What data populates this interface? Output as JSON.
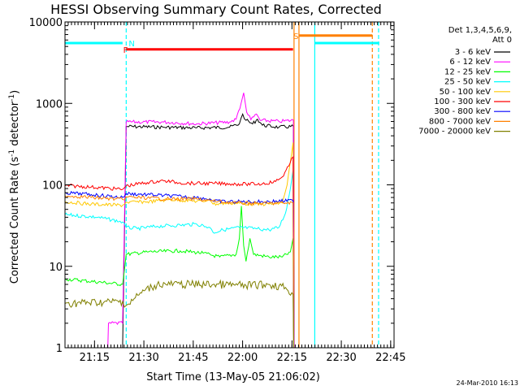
{
  "chart_data": {
    "type": "line",
    "title": "HESSI Observing Summary Count Rates, Corrected",
    "xlabel": "Start Time (13-May-05 21:06:02)",
    "ylabel_main": "Corrected Count Rate (s",
    "ylabel_sup1": "-1",
    "ylabel_mid": " detector",
    "ylabel_sup2": "-1",
    "ylabel_end": ")",
    "footer_stamp": "24-Mar-2010 16:13",
    "y_scale": "log",
    "ylim": [
      1,
      10000
    ],
    "xlim_minutes": [
      0,
      100
    ],
    "x_ticks": [
      {
        "label": "21:15",
        "min": 8.97
      },
      {
        "label": "21:30",
        "min": 23.97
      },
      {
        "label": "21:45",
        "min": 38.97
      },
      {
        "label": "22:00",
        "min": 53.97
      },
      {
        "label": "22:15",
        "min": 68.97
      },
      {
        "label": "22:30",
        "min": 83.97
      },
      {
        "label": "22:45",
        "min": 98.97
      }
    ],
    "y_ticks": [
      {
        "label": "1",
        "value": 1
      },
      {
        "label": "10",
        "value": 10
      },
      {
        "label": "100",
        "value": 100
      },
      {
        "label": "1000",
        "value": 1000
      },
      {
        "label": "10000",
        "value": 10000
      }
    ],
    "legend_header": [
      "Det 1,3,4,5,6,9,",
      "Att 0"
    ],
    "series": [
      {
        "name": "3 - 6 keV",
        "color": "#000000",
        "points": [
          [
            17.5,
            0
          ],
          [
            18.6,
            520
          ],
          [
            30,
            510
          ],
          [
            40,
            500
          ],
          [
            50,
            510
          ],
          [
            53,
            560
          ],
          [
            54,
            740
          ],
          [
            55,
            620
          ],
          [
            57,
            560
          ],
          [
            58.5,
            640
          ],
          [
            60,
            540
          ],
          [
            65,
            510
          ],
          [
            69.4,
            520
          ],
          [
            69.6,
            0
          ]
        ]
      },
      {
        "name": "6 - 12 keV",
        "color": "#ff00ff",
        "points": [
          [
            13,
            1
          ],
          [
            13.2,
            2
          ],
          [
            17.5,
            2
          ],
          [
            18.6,
            590
          ],
          [
            30,
            590
          ],
          [
            40,
            560
          ],
          [
            50,
            590
          ],
          [
            52,
            640
          ],
          [
            53.5,
            1000
          ],
          [
            54.3,
            1350
          ],
          [
            55.2,
            780
          ],
          [
            56.5,
            630
          ],
          [
            58.2,
            740
          ],
          [
            59.3,
            620
          ],
          [
            65,
            600
          ],
          [
            69.4,
            620
          ],
          [
            69.6,
            0
          ]
        ]
      },
      {
        "name": "12 - 25 keV",
        "color": "#00ff00",
        "points": [
          [
            0,
            7
          ],
          [
            17.5,
            6
          ],
          [
            18.6,
            14
          ],
          [
            25,
            15
          ],
          [
            35,
            15.5
          ],
          [
            42,
            14.5
          ],
          [
            47,
            13
          ],
          [
            52,
            14
          ],
          [
            53,
            22
          ],
          [
            53.6,
            55
          ],
          [
            54.3,
            18
          ],
          [
            55,
            11.5
          ],
          [
            56.2,
            22
          ],
          [
            57.3,
            14
          ],
          [
            62,
            13
          ],
          [
            66,
            13
          ],
          [
            68.5,
            15
          ],
          [
            69.3,
            22
          ],
          [
            69.5,
            0
          ]
        ]
      },
      {
        "name": "25 - 50 keV",
        "color": "#00ffff",
        "points": [
          [
            0,
            43
          ],
          [
            10,
            40
          ],
          [
            17.5,
            35
          ],
          [
            18.6,
            30
          ],
          [
            22,
            29
          ],
          [
            28,
            31
          ],
          [
            35,
            32
          ],
          [
            40,
            33
          ],
          [
            44,
            30
          ],
          [
            45,
            26
          ],
          [
            48,
            28
          ],
          [
            53,
            30
          ],
          [
            58,
            29
          ],
          [
            62,
            28
          ],
          [
            65,
            30
          ],
          [
            67,
            45
          ],
          [
            68.5,
            90
          ],
          [
            69.3,
            150
          ],
          [
            69.5,
            0
          ]
        ]
      },
      {
        "name": "50 - 100 keV",
        "color": "#ffc800",
        "points": [
          [
            0,
            62
          ],
          [
            8,
            58
          ],
          [
            17.5,
            56
          ],
          [
            18.6,
            61
          ],
          [
            25,
            62
          ],
          [
            32,
            66
          ],
          [
            38,
            64
          ],
          [
            42,
            62
          ],
          [
            44,
            68
          ],
          [
            45,
            58
          ],
          [
            50,
            60
          ],
          [
            58,
            58
          ],
          [
            62,
            58
          ],
          [
            66,
            60
          ],
          [
            67.5,
            100
          ],
          [
            68.8,
            230
          ],
          [
            69.3,
            330
          ],
          [
            69.5,
            0
          ]
        ]
      },
      {
        "name": "100 - 300 keV",
        "color": "#ff0000",
        "points": [
          [
            0,
            98
          ],
          [
            8,
            94
          ],
          [
            17.5,
            88
          ],
          [
            18.6,
            97
          ],
          [
            25,
            107
          ],
          [
            30,
            112
          ],
          [
            35,
            106
          ],
          [
            40,
            104
          ],
          [
            45,
            104
          ],
          [
            50,
            103
          ],
          [
            55,
            102
          ],
          [
            60,
            103
          ],
          [
            64,
            110
          ],
          [
            66,
            125
          ],
          [
            68,
            170
          ],
          [
            69.3,
            220
          ],
          [
            69.5,
            0
          ]
        ]
      },
      {
        "name": "300 - 800 keV",
        "color": "#0000ff",
        "points": [
          [
            0,
            80
          ],
          [
            8,
            76
          ],
          [
            17.5,
            70
          ],
          [
            18.6,
            78
          ],
          [
            25,
            76
          ],
          [
            30,
            74
          ],
          [
            40,
            70
          ],
          [
            44,
            67
          ],
          [
            45,
            63
          ],
          [
            52,
            62
          ],
          [
            60,
            62
          ],
          [
            69.3,
            64
          ],
          [
            69.5,
            0
          ]
        ]
      },
      {
        "name": "800 - 7000 keV",
        "color": "#ff8000",
        "points": [
          [
            0,
            74
          ],
          [
            8,
            70
          ],
          [
            17.5,
            66
          ],
          [
            18.6,
            71
          ],
          [
            25,
            69
          ],
          [
            32,
            67
          ],
          [
            40,
            67
          ],
          [
            45,
            63
          ],
          [
            52,
            60
          ],
          [
            60,
            59
          ],
          [
            69.3,
            60
          ],
          [
            69.5,
            0
          ]
        ]
      },
      {
        "name": "7000 - 20000 keV",
        "color": "#808000",
        "points": [
          [
            0,
            3.5
          ],
          [
            17.5,
            3.7
          ],
          [
            18.6,
            3.3
          ],
          [
            21,
            4
          ],
          [
            24,
            5
          ],
          [
            28,
            6
          ],
          [
            35,
            6
          ],
          [
            45,
            6
          ],
          [
            55,
            5.8
          ],
          [
            62,
            6
          ],
          [
            67,
            5.5
          ],
          [
            69.3,
            4.5
          ],
          [
            69.5,
            0
          ]
        ]
      }
    ],
    "attenuator_color": "#00ffff",
    "attenuator_bars": [
      {
        "start": 0,
        "end": 17.5,
        "level": 5500
      },
      {
        "start": 76,
        "end": 95.5,
        "level": 5500
      }
    ],
    "vertical_lines": [
      {
        "min": 18.6,
        "color": "#00ffff",
        "dashed": true
      },
      {
        "min": 69.6,
        "color": "#ff8000",
        "dashed": false
      },
      {
        "min": 71.1,
        "color": "#ff8000",
        "dashed": false
      },
      {
        "min": 75.9,
        "color": "#00ffff",
        "dashed": false
      },
      {
        "min": 93.4,
        "color": "#ff8000",
        "dashed": true
      },
      {
        "min": 95.3,
        "color": "#00ffff",
        "dashed": true
      }
    ],
    "flags": [
      {
        "label": "N",
        "color": "#00ffff",
        "min": 19.3,
        "level": 5500
      },
      {
        "label": "F",
        "color": "#ff0000",
        "min": 17.4,
        "level": 4600
      },
      {
        "label": "S",
        "color": "#ff8000",
        "min": 69.2,
        "level": 6800
      }
    ],
    "flag_bars": [
      {
        "color": "#ff0000",
        "start": 18.6,
        "end": 69.3,
        "level": 4600
      },
      {
        "color": "#ff8000",
        "start": 71.1,
        "end": 93.4,
        "level": 6800
      }
    ]
  }
}
